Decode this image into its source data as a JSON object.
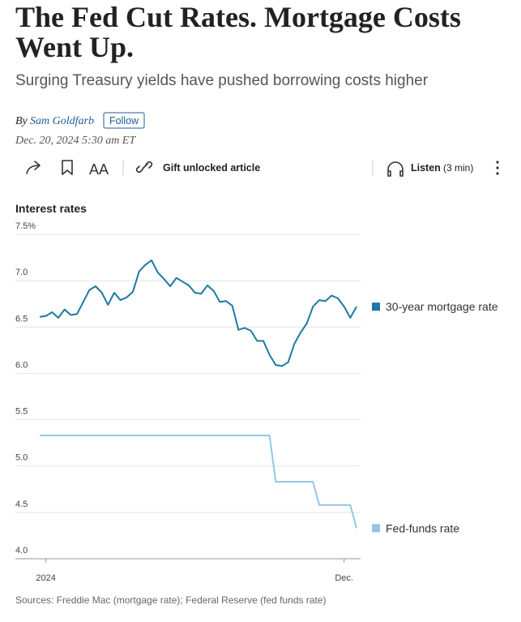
{
  "article": {
    "headline_lines": [
      "The Fed Cut Rates. Mortgage Costs",
      "Went Up."
    ],
    "subtitle": "Surging Treasury yields have pushed borrowing costs higher",
    "byline_prefix": "By",
    "author": "Sam Goldfarb",
    "follow": "Follow",
    "date": "Dec. 20, 2024 5:30 am ET",
    "gift": "Gift unlocked article",
    "listen": "Listen",
    "listen_time": "(3 min)"
  },
  "chart_data": {
    "type": "line",
    "title": "Interest rates",
    "source": "Sources: Freddie Mac (mortgage rate); Federal Reserve (fed funds rate)",
    "categories": [
      null,
      "2024",
      null,
      null,
      null,
      null,
      null,
      null,
      null,
      null,
      null,
      null,
      null,
      null,
      null,
      null,
      null,
      null,
      null,
      null,
      null,
      null,
      null,
      null,
      null,
      null,
      null,
      null,
      null,
      null,
      null,
      null,
      null,
      null,
      null,
      null,
      null,
      null,
      null,
      null,
      null,
      null,
      null,
      null,
      null,
      null,
      null,
      null,
      null,
      "Dec.",
      null,
      null
    ],
    "series": [
      {
        "name": "30-year mortgage rate",
        "color": "#1b7aa3",
        "values": [
          6.61,
          6.62,
          6.66,
          6.6,
          6.69,
          6.63,
          6.64,
          6.77,
          6.9,
          6.94,
          6.87,
          6.74,
          6.87,
          6.79,
          6.82,
          6.88,
          7.1,
          7.17,
          7.22,
          7.09,
          7.02,
          6.94,
          7.03,
          6.99,
          6.95,
          6.87,
          6.86,
          6.95,
          6.89,
          6.77,
          6.78,
          6.73,
          6.47,
          6.49,
          6.46,
          6.35,
          6.35,
          6.2,
          6.09,
          6.08,
          6.12,
          6.32,
          6.44,
          6.54,
          6.72,
          6.79,
          6.78,
          6.84,
          6.81,
          6.72,
          6.6,
          6.72
        ]
      },
      {
        "name": "Fed-funds rate",
        "color": "#93c6e6",
        "values": [
          5.33,
          5.33,
          5.33,
          5.33,
          5.33,
          5.33,
          5.33,
          5.33,
          5.33,
          5.33,
          5.33,
          5.33,
          5.33,
          5.33,
          5.33,
          5.33,
          5.33,
          5.33,
          5.33,
          5.33,
          5.33,
          5.33,
          5.33,
          5.33,
          5.33,
          5.33,
          5.33,
          5.33,
          5.33,
          5.33,
          5.33,
          5.33,
          5.33,
          5.33,
          5.33,
          5.33,
          5.33,
          5.33,
          4.83,
          4.83,
          4.83,
          4.83,
          4.83,
          4.83,
          4.83,
          4.58,
          4.58,
          4.58,
          4.58,
          4.58,
          4.58,
          4.33
        ]
      }
    ],
    "ylim": [
      4.0,
      7.5
    ],
    "yticks": [
      {
        "value": 4.0,
        "label": "4.0"
      },
      4.5,
      {
        "value": 5.0,
        "label": "5.0"
      },
      5.5,
      {
        "value": 6.0,
        "label": "6.0"
      },
      6.5,
      {
        "value": 7.0,
        "label": "7.0"
      },
      {
        "value": 7.5,
        "label": "7.5%"
      }
    ],
    "grid": true,
    "legend": "right"
  }
}
